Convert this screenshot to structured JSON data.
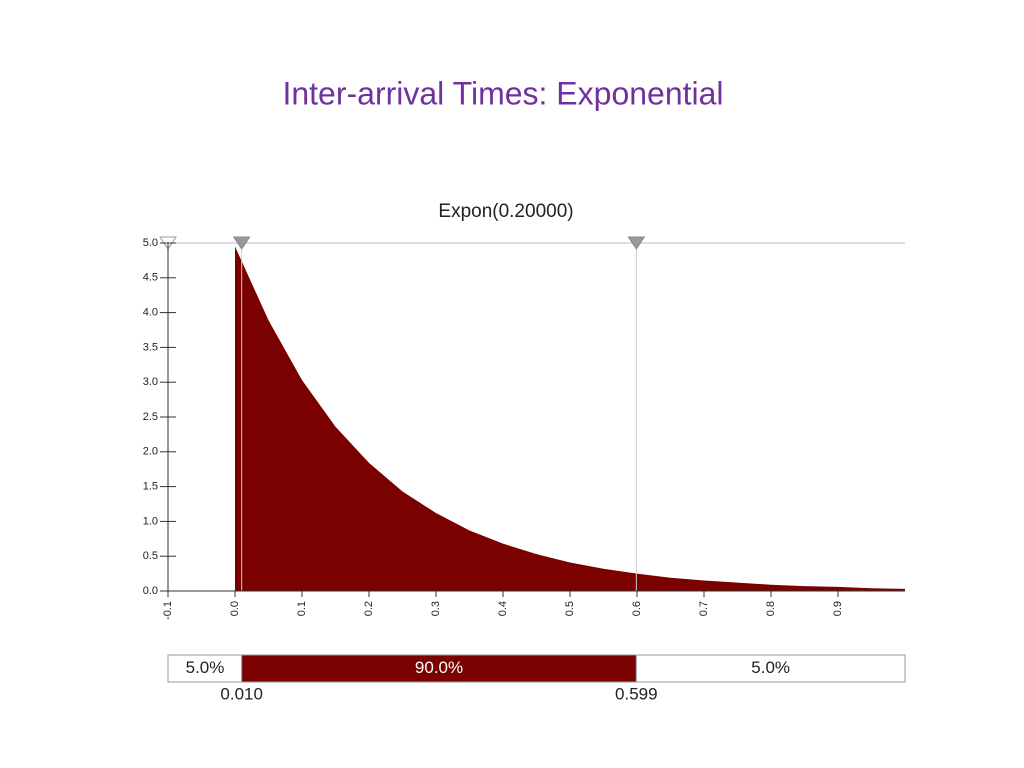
{
  "slide_title": "Inter-arrival Times: Exponential",
  "chart_data": {
    "type": "area",
    "title": "Expon(0.20000)",
    "color": "#7b0000",
    "x": [
      0,
      0.05,
      0.1,
      0.15,
      0.2,
      0.25,
      0.3,
      0.35,
      0.4,
      0.45,
      0.5,
      0.55,
      0.6,
      0.65,
      0.7,
      0.75,
      0.8,
      0.85,
      0.9,
      0.95,
      1.0
    ],
    "values": [
      4.95,
      3.89,
      3.03,
      2.36,
      1.84,
      1.43,
      1.12,
      0.87,
      0.68,
      0.53,
      0.41,
      0.32,
      0.25,
      0.19,
      0.15,
      0.12,
      0.09,
      0.07,
      0.06,
      0.04,
      0.03
    ],
    "xlim": [
      -0.1,
      1.0
    ],
    "ylim": [
      0,
      5
    ],
    "xticks": [
      -0.1,
      {
        "value": 0,
        "label": "0.0"
      },
      0.1,
      0.2,
      0.3,
      0.4,
      0.5,
      0.6,
      0.7,
      0.8,
      0.9
    ],
    "yticks": [
      {
        "value": 0,
        "label": "0.0"
      },
      0.5,
      {
        "value": 1,
        "label": "1.0"
      },
      1.5,
      {
        "value": 2,
        "label": "2.0"
      },
      2.5,
      {
        "value": 3,
        "label": "3.0"
      },
      3.5,
      {
        "value": 4,
        "label": "4.0"
      },
      4.5,
      {
        "value": 5,
        "label": "5.0"
      }
    ],
    "grid": false,
    "delimiters": [
      {
        "value": 0.01,
        "label": "0.010"
      },
      {
        "value": 0.599,
        "label": "0.599"
      }
    ],
    "band_percent": {
      "values": [
        5,
        90,
        5
      ],
      "value_labels": [
        "5.0%",
        "90.0%",
        "5.0%"
      ]
    }
  }
}
